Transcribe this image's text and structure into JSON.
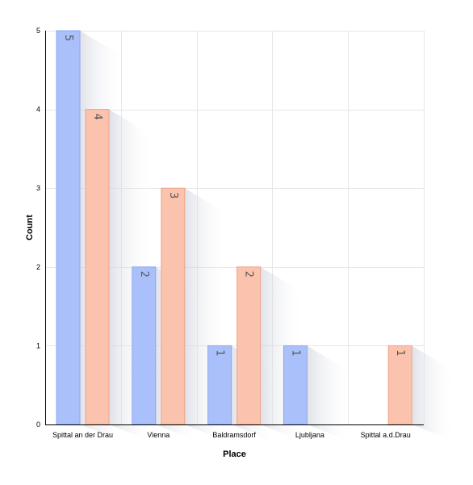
{
  "chart_data": {
    "type": "bar",
    "xlabel": "Place",
    "ylabel": "Count",
    "ylim": [
      0,
      5
    ],
    "yticks": [
      0,
      1,
      2,
      3,
      4,
      5
    ],
    "grid": true,
    "categories": [
      "Spittal an der Drau",
      "Vienna",
      "Baldramsdorf",
      "Ljubljana",
      "Spittal a.d.Drau"
    ],
    "series": [
      {
        "values": [
          5,
          2,
          1,
          1,
          0
        ],
        "color": "#a9c0fa",
        "stroke": "#8ea9f0"
      },
      {
        "values": [
          4,
          3,
          2,
          0,
          1
        ],
        "color": "#fbc3ad",
        "stroke": "#eaa48a"
      }
    ],
    "data_labels": true
  }
}
